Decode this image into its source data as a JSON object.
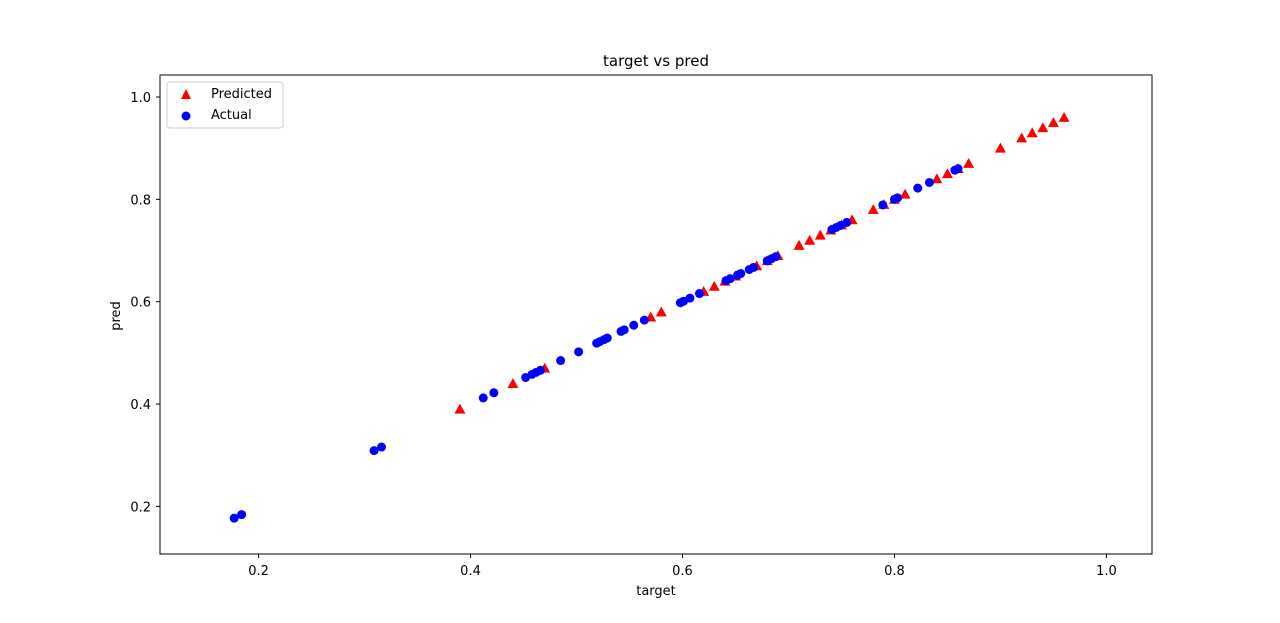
{
  "chart_data": {
    "type": "scatter",
    "title": "target vs pred",
    "xlabel": "target",
    "ylabel": "pred",
    "xlim": [
      0.107,
      1.043
    ],
    "ylim": [
      0.107,
      1.043
    ],
    "xticks": [
      0.2,
      0.4,
      0.6,
      0.8,
      1.0
    ],
    "yticks": [
      0.2,
      0.4,
      0.6,
      0.8,
      1.0
    ],
    "xtick_labels": [
      "0.2",
      "0.4",
      "0.6",
      "0.8",
      "1.0"
    ],
    "ytick_labels": [
      "0.2",
      "0.4",
      "0.6",
      "0.8",
      "1.0"
    ],
    "grid": false,
    "legend_position": "top-left",
    "series": [
      {
        "name": "Predicted",
        "marker": "triangle",
        "color": "#ff0000",
        "x": [
          0.39,
          0.44,
          0.47,
          0.57,
          0.58,
          0.62,
          0.63,
          0.64,
          0.65,
          0.67,
          0.68,
          0.69,
          0.71,
          0.72,
          0.73,
          0.74,
          0.75,
          0.76,
          0.78,
          0.79,
          0.8,
          0.81,
          0.84,
          0.85,
          0.86,
          0.87,
          0.9,
          0.92,
          0.93,
          0.94,
          0.95,
          0.96
        ],
        "y": [
          0.39,
          0.44,
          0.47,
          0.57,
          0.58,
          0.62,
          0.63,
          0.64,
          0.65,
          0.67,
          0.68,
          0.69,
          0.71,
          0.72,
          0.73,
          0.74,
          0.75,
          0.76,
          0.78,
          0.79,
          0.8,
          0.81,
          0.84,
          0.85,
          0.86,
          0.87,
          0.9,
          0.92,
          0.93,
          0.94,
          0.95,
          0.96
        ]
      },
      {
        "name": "Actual",
        "marker": "circle",
        "color": "#0000ff",
        "x": [
          0.177,
          0.184,
          0.309,
          0.316,
          0.412,
          0.422,
          0.452,
          0.458,
          0.462,
          0.466,
          0.485,
          0.502,
          0.519,
          0.522,
          0.526,
          0.529,
          0.542,
          0.545,
          0.554,
          0.564,
          0.598,
          0.601,
          0.607,
          0.616,
          0.641,
          0.645,
          0.652,
          0.655,
          0.663,
          0.667,
          0.68,
          0.684,
          0.688,
          0.741,
          0.745,
          0.749,
          0.755,
          0.789,
          0.8,
          0.803,
          0.822,
          0.833,
          0.857,
          0.86
        ],
        "y": [
          0.177,
          0.184,
          0.309,
          0.316,
          0.412,
          0.422,
          0.452,
          0.458,
          0.462,
          0.466,
          0.485,
          0.502,
          0.519,
          0.522,
          0.526,
          0.529,
          0.542,
          0.545,
          0.554,
          0.564,
          0.598,
          0.601,
          0.607,
          0.616,
          0.641,
          0.645,
          0.652,
          0.655,
          0.663,
          0.667,
          0.68,
          0.684,
          0.688,
          0.741,
          0.745,
          0.749,
          0.755,
          0.789,
          0.8,
          0.803,
          0.822,
          0.833,
          0.857,
          0.86
        ]
      }
    ]
  }
}
